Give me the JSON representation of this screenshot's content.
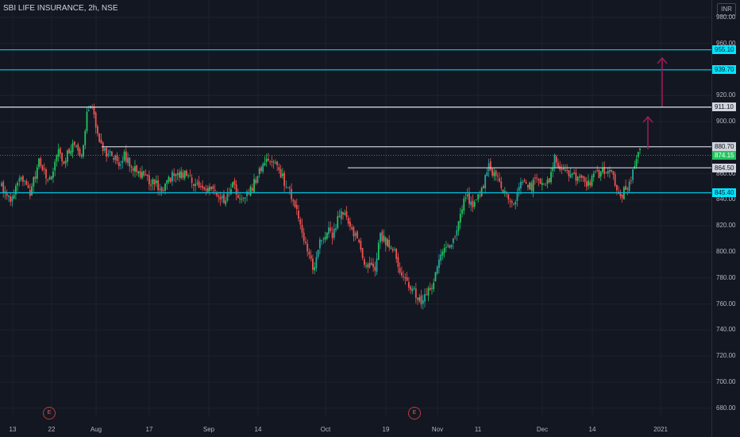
{
  "header": {
    "title": "SBI LIFE INSURANCE, 2h, NSE",
    "currency": "INR"
  },
  "colors": {
    "background": "#131722",
    "up": "#26a69a",
    "up_bright": "#22c55e",
    "down": "#ef5350",
    "cyan_line": "#00bcd4",
    "white_line": "#d1d4dc",
    "arrow": "#9c1e5a",
    "last_price": "#22c55e"
  },
  "y_axis": {
    "ticks": [
      "980.00",
      "960.00",
      "940.00",
      "920.00",
      "900.00",
      "880.00",
      "860.00",
      "840.00",
      "820.00",
      "800.00",
      "780.00",
      "760.00",
      "740.00",
      "720.00",
      "700.00",
      "680.00"
    ]
  },
  "x_axis": {
    "ticks": [
      "13",
      "22",
      "Aug",
      "17",
      "Sep",
      "14",
      "Oct",
      "19",
      "Nov",
      "11",
      "Dec",
      "14",
      "2021"
    ]
  },
  "price_tags": [
    {
      "label": "955.10",
      "style": "cyan"
    },
    {
      "label": "939.70",
      "style": "cyan"
    },
    {
      "label": "911.10",
      "style": "white"
    },
    {
      "label": "880.70",
      "style": "white"
    },
    {
      "label": "874.15",
      "style": "green"
    },
    {
      "label": "864.50",
      "style": "white"
    },
    {
      "label": "845.40",
      "style": "cyan"
    }
  ],
  "events": [
    {
      "label": "E"
    },
    {
      "label": "E"
    }
  ],
  "chart_data": {
    "type": "candlestick",
    "symbol": "SBI LIFE INSURANCE",
    "interval": "2h",
    "exchange": "NSE",
    "currency": "INR",
    "ylim": [
      672,
      988
    ],
    "last_price": 874.15,
    "horizontal_levels": [
      955.1,
      939.7,
      911.1,
      880.7,
      864.5,
      845.4
    ],
    "path": [
      [
        0,
        850
      ],
      [
        2,
        838
      ],
      [
        4,
        858
      ],
      [
        6,
        844
      ],
      [
        8,
        870
      ],
      [
        10,
        852
      ],
      [
        12,
        880
      ],
      [
        13,
        868
      ],
      [
        15,
        883
      ],
      [
        17,
        871
      ],
      [
        18,
        904
      ],
      [
        19,
        915
      ],
      [
        20,
        893
      ],
      [
        21,
        880
      ],
      [
        23,
        874
      ],
      [
        25,
        868
      ],
      [
        26,
        874
      ],
      [
        28,
        864
      ],
      [
        30,
        858
      ],
      [
        32,
        853
      ],
      [
        34,
        848
      ],
      [
        36,
        858
      ],
      [
        38,
        861
      ],
      [
        40,
        855
      ],
      [
        42,
        848
      ],
      [
        44,
        850
      ],
      [
        46,
        843
      ],
      [
        47,
        839
      ],
      [
        49,
        852
      ],
      [
        50,
        842
      ],
      [
        52,
        843
      ],
      [
        54,
        857
      ],
      [
        55,
        865
      ],
      [
        57,
        873
      ],
      [
        59,
        860
      ],
      [
        61,
        845
      ],
      [
        62,
        835
      ],
      [
        63,
        826
      ],
      [
        64,
        808
      ],
      [
        65,
        796
      ],
      [
        66,
        786
      ],
      [
        67,
        806
      ],
      [
        68,
        810
      ],
      [
        69,
        817
      ],
      [
        70,
        812
      ],
      [
        71,
        825
      ],
      [
        72,
        832
      ],
      [
        73,
        826
      ],
      [
        74,
        819
      ],
      [
        75,
        811
      ],
      [
        76,
        800
      ],
      [
        77,
        790
      ],
      [
        79,
        786
      ],
      [
        80,
        812
      ],
      [
        81,
        810
      ],
      [
        82,
        804
      ],
      [
        83,
        800
      ],
      [
        84,
        788
      ],
      [
        86,
        775
      ],
      [
        87,
        770
      ],
      [
        88,
        766
      ],
      [
        89,
        762
      ],
      [
        90,
        768
      ],
      [
        91,
        772
      ],
      [
        92,
        786
      ],
      [
        93,
        798
      ],
      [
        94,
        804
      ],
      [
        95,
        808
      ],
      [
        96,
        812
      ],
      [
        97,
        830
      ],
      [
        98,
        844
      ],
      [
        99,
        839
      ],
      [
        100,
        837
      ],
      [
        101,
        843
      ],
      [
        102,
        853
      ],
      [
        103,
        865
      ],
      [
        104,
        861
      ],
      [
        105,
        855
      ],
      [
        106,
        849
      ],
      [
        107,
        842
      ],
      [
        108,
        835
      ],
      [
        109,
        842
      ],
      [
        110,
        854
      ],
      [
        111,
        852
      ],
      [
        112,
        850
      ],
      [
        113,
        857
      ],
      [
        114,
        855
      ],
      [
        115,
        851
      ],
      [
        116,
        854
      ],
      [
        117,
        874
      ],
      [
        118,
        866
      ],
      [
        119,
        861
      ],
      [
        120,
        858
      ],
      [
        121,
        857
      ],
      [
        122,
        856
      ],
      [
        123,
        854
      ],
      [
        124,
        852
      ],
      [
        125,
        857
      ],
      [
        126,
        859
      ],
      [
        127,
        862
      ],
      [
        128,
        860
      ],
      [
        129,
        862
      ],
      [
        130,
        849
      ],
      [
        131,
        842
      ],
      [
        132,
        850
      ],
      [
        133,
        853
      ],
      [
        134,
        869
      ],
      [
        135,
        876
      ]
    ]
  }
}
